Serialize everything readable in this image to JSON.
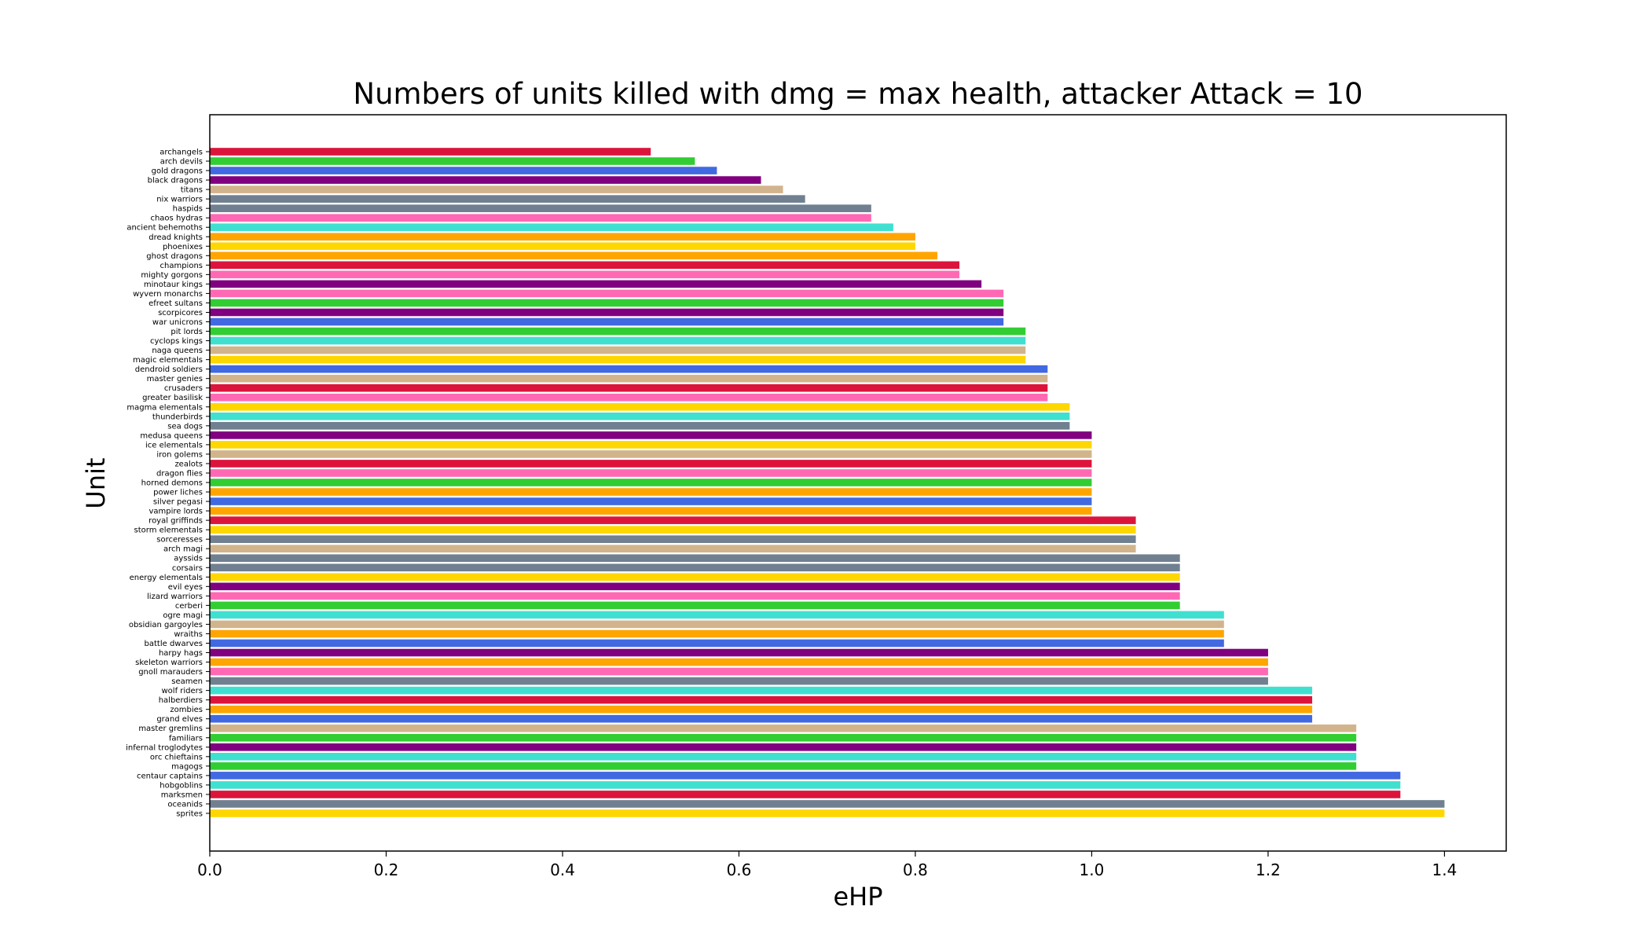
{
  "chart_data": {
    "type": "bar",
    "orientation": "horizontal",
    "title": "Numbers of units killed with dmg = max health, attacker Attack = 10",
    "xlabel": "eHP",
    "ylabel": "Unit",
    "xlim": [
      0,
      1.47
    ],
    "xticks": [
      "0.0",
      "0.2",
      "0.4",
      "0.6",
      "0.8",
      "1.0",
      "1.2",
      "1.4"
    ],
    "grid": false,
    "legend": "none",
    "categories": [
      "archangels",
      "arch devils",
      "gold dragons",
      "black dragons",
      "titans",
      "nix warriors",
      "haspids",
      "chaos hydras",
      "ancient behemoths",
      "dread knights",
      "phoenixes",
      "ghost dragons",
      "champions",
      "mighty gorgons",
      "minotaur kings",
      "wyvern monarchs",
      "efreet sultans",
      "scorpicores",
      "war unicrons",
      "pit lords",
      "cyclops kings",
      "naga queens",
      "magic elementals",
      "dendroid soldiers",
      "master genies",
      "crusaders",
      "greater basilisk",
      "magma elementals",
      "thunderbirds",
      "sea dogs",
      "medusa queens",
      "ice elementals",
      "iron golems",
      "zealots",
      "dragon flies",
      "horned demons",
      "power liches",
      "silver pegasi",
      "vampire lords",
      "royal griffinds",
      "storm elementals",
      "sorceresses",
      "arch magi",
      "ayssids",
      "corsairs",
      "energy elementals",
      "evil eyes",
      "lizard warriors",
      "cerberi",
      "ogre magi",
      "obsidian gargoyles",
      "wraiths",
      "battle dwarves",
      "harpy hags",
      "skeleton warriors",
      "gnoll marauders",
      "seamen",
      "wolf riders",
      "halberdiers",
      "zombies",
      "grand elves",
      "master gremlins",
      "familiars",
      "infernal troglodytes",
      "orc chieftains",
      "magogs",
      "centaur captains",
      "hobgoblins",
      "marksmen",
      "oceanids",
      "sprites"
    ],
    "values": [
      0.5,
      0.55,
      0.575,
      0.625,
      0.65,
      0.675,
      0.75,
      0.75,
      0.775,
      0.8,
      0.8,
      0.825,
      0.85,
      0.85,
      0.875,
      0.9,
      0.9,
      0.9,
      0.9,
      0.925,
      0.925,
      0.925,
      0.925,
      0.95,
      0.95,
      0.95,
      0.95,
      0.975,
      0.975,
      0.975,
      1.0,
      1.0,
      1.0,
      1.0,
      1.0,
      1.0,
      1.0,
      1.0,
      1.0,
      1.05,
      1.05,
      1.05,
      1.05,
      1.1,
      1.1,
      1.1,
      1.1,
      1.1,
      1.1,
      1.15,
      1.15,
      1.15,
      1.15,
      1.2,
      1.2,
      1.2,
      1.2,
      1.25,
      1.25,
      1.25,
      1.25,
      1.3,
      1.3,
      1.3,
      1.3,
      1.3,
      1.35,
      1.35,
      1.35,
      1.4,
      1.4
    ],
    "colors": [
      "#dc143c",
      "#32cd32",
      "#4169e1",
      "#800080",
      "#d2b48c",
      "#708090",
      "#708090",
      "#ff69b4",
      "#40e0d0",
      "#ffa500",
      "#ffd700",
      "#ffa500",
      "#dc143c",
      "#ff69b4",
      "#800080",
      "#ff69b4",
      "#32cd32",
      "#800080",
      "#4169e1",
      "#32cd32",
      "#40e0d0",
      "#d2b48c",
      "#ffd700",
      "#4169e1",
      "#d2b48c",
      "#dc143c",
      "#ff69b4",
      "#ffd700",
      "#40e0d0",
      "#708090",
      "#800080",
      "#ffd700",
      "#d2b48c",
      "#dc143c",
      "#ff69b4",
      "#32cd32",
      "#ffa500",
      "#4169e1",
      "#ffa500",
      "#dc143c",
      "#ffd700",
      "#708090",
      "#d2b48c",
      "#708090",
      "#708090",
      "#ffd700",
      "#800080",
      "#ff69b4",
      "#32cd32",
      "#40e0d0",
      "#d2b48c",
      "#ffa500",
      "#4169e1",
      "#800080",
      "#ffa500",
      "#ff69b4",
      "#708090",
      "#40e0d0",
      "#dc143c",
      "#ffa500",
      "#4169e1",
      "#d2b48c",
      "#32cd32",
      "#800080",
      "#40e0d0",
      "#32cd32",
      "#4169e1",
      "#40e0d0",
      "#dc143c",
      "#708090",
      "#ffd700"
    ]
  }
}
